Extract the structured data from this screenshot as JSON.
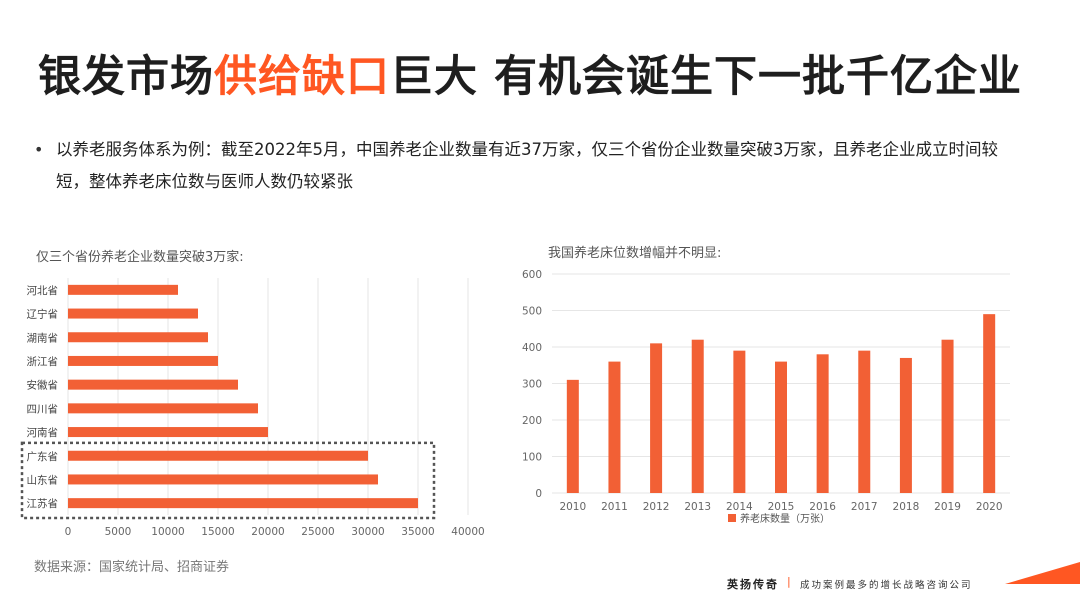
{
  "title": {
    "part1": "银发市场",
    "highlight": "供给缺口",
    "part2": "巨大 有机会诞生下一批千亿企业"
  },
  "bullet": {
    "marker": "•",
    "text": "以养老服务体系为例：截至2022年5月，中国养老企业数量有近37万家，仅三个省份企业数量突破3万家，且养老企业成立时间较短，整体养老床位数与医师人数仍较紧张"
  },
  "colors": {
    "accent": "#ff5722",
    "bar": "#f26035",
    "grid": "#e6e6e6",
    "axis_text": "#666666"
  },
  "chart_data": [
    {
      "type": "bar",
      "orientation": "horizontal",
      "title": "仅三个省份养老企业数量突破3万家:",
      "categories": [
        "河北省",
        "辽宁省",
        "湖南省",
        "浙江省",
        "安徽省",
        "四川省",
        "河南省",
        "广东省",
        "山东省",
        "江苏省"
      ],
      "values": [
        11000,
        13000,
        14000,
        15000,
        17000,
        19000,
        20000,
        30000,
        31000,
        35000
      ],
      "xlim": [
        0,
        40000
      ],
      "ticks": [
        "0",
        "5000",
        "10000",
        "15000",
        "20000",
        "25000",
        "30000",
        "35000",
        "40000"
      ],
      "grid": true,
      "highlight_box_categories": [
        "广东省",
        "山东省",
        "江苏省"
      ]
    },
    {
      "type": "bar",
      "orientation": "vertical",
      "title": "我国养老床位数增幅并不明显:",
      "categories": [
        "2010",
        "2011",
        "2012",
        "2013",
        "2014",
        "2015",
        "2016",
        "2017",
        "2018",
        "2019",
        "2020"
      ],
      "series": [
        {
          "name": "养老床数量（万张）",
          "values": [
            310,
            360,
            410,
            420,
            390,
            360,
            380,
            390,
            370,
            420,
            490
          ]
        }
      ],
      "ylim": [
        0,
        600
      ],
      "ticks": [
        "0",
        "100",
        "200",
        "300",
        "400",
        "500",
        "600"
      ],
      "legend": "bottom",
      "grid": true
    }
  ],
  "source": "数据来源：国家统计局、招商证券",
  "footer": {
    "brand": "英扬传奇",
    "separator": "|",
    "slogan": "成功案例最多的增长战略咨询公司"
  }
}
